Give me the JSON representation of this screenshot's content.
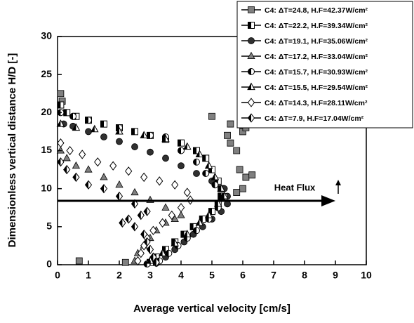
{
  "chart_data": {
    "type": "scatter",
    "xlabel": "Average vertical velocity [cm/s]",
    "ylabel": "Dimensionless vertical distance H/D [-]",
    "annotation": "Heat Flux",
    "xlim": [
      0,
      10
    ],
    "ylim": [
      0,
      30
    ],
    "xticks": [
      0,
      1,
      2,
      3,
      4,
      5,
      6,
      7,
      8,
      9,
      10
    ],
    "yticks": [
      0,
      5,
      10,
      15,
      20,
      25,
      30
    ],
    "series": [
      {
        "name": "C4: ΔT=24.8, H.F=42.37W/cm²",
        "color": "#808080",
        "marker": "square",
        "fill_style": "solid",
        "x": [
          0.1,
          0.15,
          0.7,
          2.2,
          5.0,
          5.5,
          5.6,
          5.6,
          5.8,
          6.0,
          6.1,
          6.1,
          5.9,
          6.3,
          6.0,
          5.8
        ],
        "values": [
          22.5,
          21.5,
          0.5,
          0.3,
          19.5,
          17,
          18.5,
          16,
          15,
          17.5,
          18,
          11.5,
          12.5,
          11.8,
          10,
          9.5
        ]
      },
      {
        "name": "C4: ΔT=22.2, H.F=39.34W/cm²",
        "color": "#000000",
        "marker": "square",
        "fill_style": "half",
        "x": [
          0.1,
          0.3,
          0.6,
          1.0,
          1.5,
          2.0,
          2.5,
          3.0,
          3.5,
          4.0,
          4.5,
          4.8,
          5.0,
          5.2,
          5.3,
          5.3,
          5.2,
          5.0,
          4.7,
          4.4,
          4.1,
          3.8,
          3.5,
          3.2,
          3.0
        ],
        "values": [
          21,
          20,
          19.5,
          19,
          18.5,
          18,
          17.5,
          17,
          16.5,
          16,
          15,
          14,
          12.5,
          11,
          10,
          9,
          8,
          7,
          6,
          5,
          4,
          3,
          2,
          1,
          0.3
        ]
      },
      {
        "name": "C4: ΔT=19.1, H.F=35.06W/cm²",
        "color": "#303030",
        "marker": "circle",
        "fill_style": "solid",
        "x": [
          0.2,
          0.5,
          1.0,
          1.5,
          2.0,
          2.5,
          3.0,
          3.5,
          4.0,
          4.5,
          5.0,
          5.4,
          5.5,
          5.5,
          5.3,
          5.0,
          4.7,
          4.4,
          4.1,
          3.8,
          3.5,
          3.2
        ],
        "values": [
          18.5,
          18.2,
          17.5,
          16.8,
          16.2,
          15.5,
          14.8,
          14,
          13,
          12,
          11,
          10,
          9,
          8,
          7,
          6,
          5,
          4,
          3,
          2,
          1,
          0.2
        ]
      },
      {
        "name": "C4: ΔT=17.2, H.F=33.04W/cm²",
        "color": "#808080",
        "marker": "triangle",
        "fill_style": "solid",
        "x": [
          0.1,
          0.3,
          0.6,
          1.0,
          1.5,
          2.0,
          2.5,
          3.0,
          3.5,
          4.0,
          3.8,
          3.5,
          3.2,
          3.0,
          2.8,
          2.6,
          2.5
        ],
        "values": [
          15,
          14,
          13,
          12.5,
          11.5,
          10.5,
          9.5,
          8.5,
          7.5,
          6.5,
          6,
          5.5,
          4.5,
          3.5,
          2.5,
          1.5,
          0.5
        ]
      },
      {
        "name": "C4: ΔT=15.7, H.F=30.93W/cm²",
        "color": "#000000",
        "marker": "circle",
        "fill_style": "half",
        "x": [
          0.1,
          0.5,
          1.0,
          2.0,
          3.0,
          3.5,
          4.0,
          4.5,
          4.8,
          5.1,
          5.4,
          5.2,
          4.9,
          4.5,
          4.2,
          3.9,
          3.6,
          3.3,
          2.9
        ],
        "values": [
          20,
          19.5,
          19,
          18,
          17,
          16.8,
          15,
          13.5,
          12,
          10.5,
          9,
          7.5,
          6,
          4.5,
          3.5,
          2.5,
          1.5,
          0.5,
          0.1
        ]
      },
      {
        "name": "C4: ΔT=15.5, H.F=29.54W/cm²",
        "color": "#000000",
        "marker": "triangle",
        "fill_style": "half",
        "x": [
          0.1,
          0.6,
          1.2,
          2.0,
          2.8,
          3.5,
          4.2,
          4.6,
          4.9,
          5.1,
          5.3,
          5.4,
          5.2,
          4.9,
          4.6,
          4.2,
          3.8,
          3.4,
          3.0
        ],
        "values": [
          18.5,
          18,
          17.8,
          17.5,
          17,
          16.5,
          15.5,
          14.5,
          13,
          11.5,
          10,
          9,
          8,
          6.5,
          5.5,
          4,
          2.8,
          1.5,
          0.5
        ]
      },
      {
        "name": "C4: ΔT=14.3, H.F=28.11W/cm²",
        "color": "#000000",
        "marker": "diamond",
        "fill_style": "open",
        "x": [
          0.1,
          0.4,
          0.8,
          1.3,
          1.8,
          2.3,
          2.8,
          3.3,
          3.8,
          4.2,
          4.3,
          4.0,
          3.7,
          3.4,
          3.1,
          2.9,
          2.8,
          2.7,
          2.6
        ],
        "values": [
          16,
          15,
          14.5,
          13.5,
          13,
          12.3,
          11.5,
          11,
          10.5,
          9.5,
          8.5,
          7.5,
          6.5,
          5.5,
          4.5,
          3.5,
          2.5,
          1.5,
          0.5
        ]
      },
      {
        "name": "C4: ΔT=7.9, H.F=17.04W/cm²",
        "color": "#000000",
        "marker": "diamond",
        "fill_style": "half",
        "x": [
          0.1,
          0.3,
          0.6,
          1.0,
          1.5,
          2.0,
          2.5,
          2.9,
          2.7,
          2.3,
          2.1,
          2.5,
          2.8,
          2.9,
          3.0,
          3.1,
          3.2
        ],
        "values": [
          13.5,
          12.5,
          11.5,
          10.5,
          10,
          9,
          8,
          7,
          6.5,
          6,
          5.5,
          5,
          4,
          3,
          2,
          1,
          0.3
        ]
      }
    ]
  }
}
